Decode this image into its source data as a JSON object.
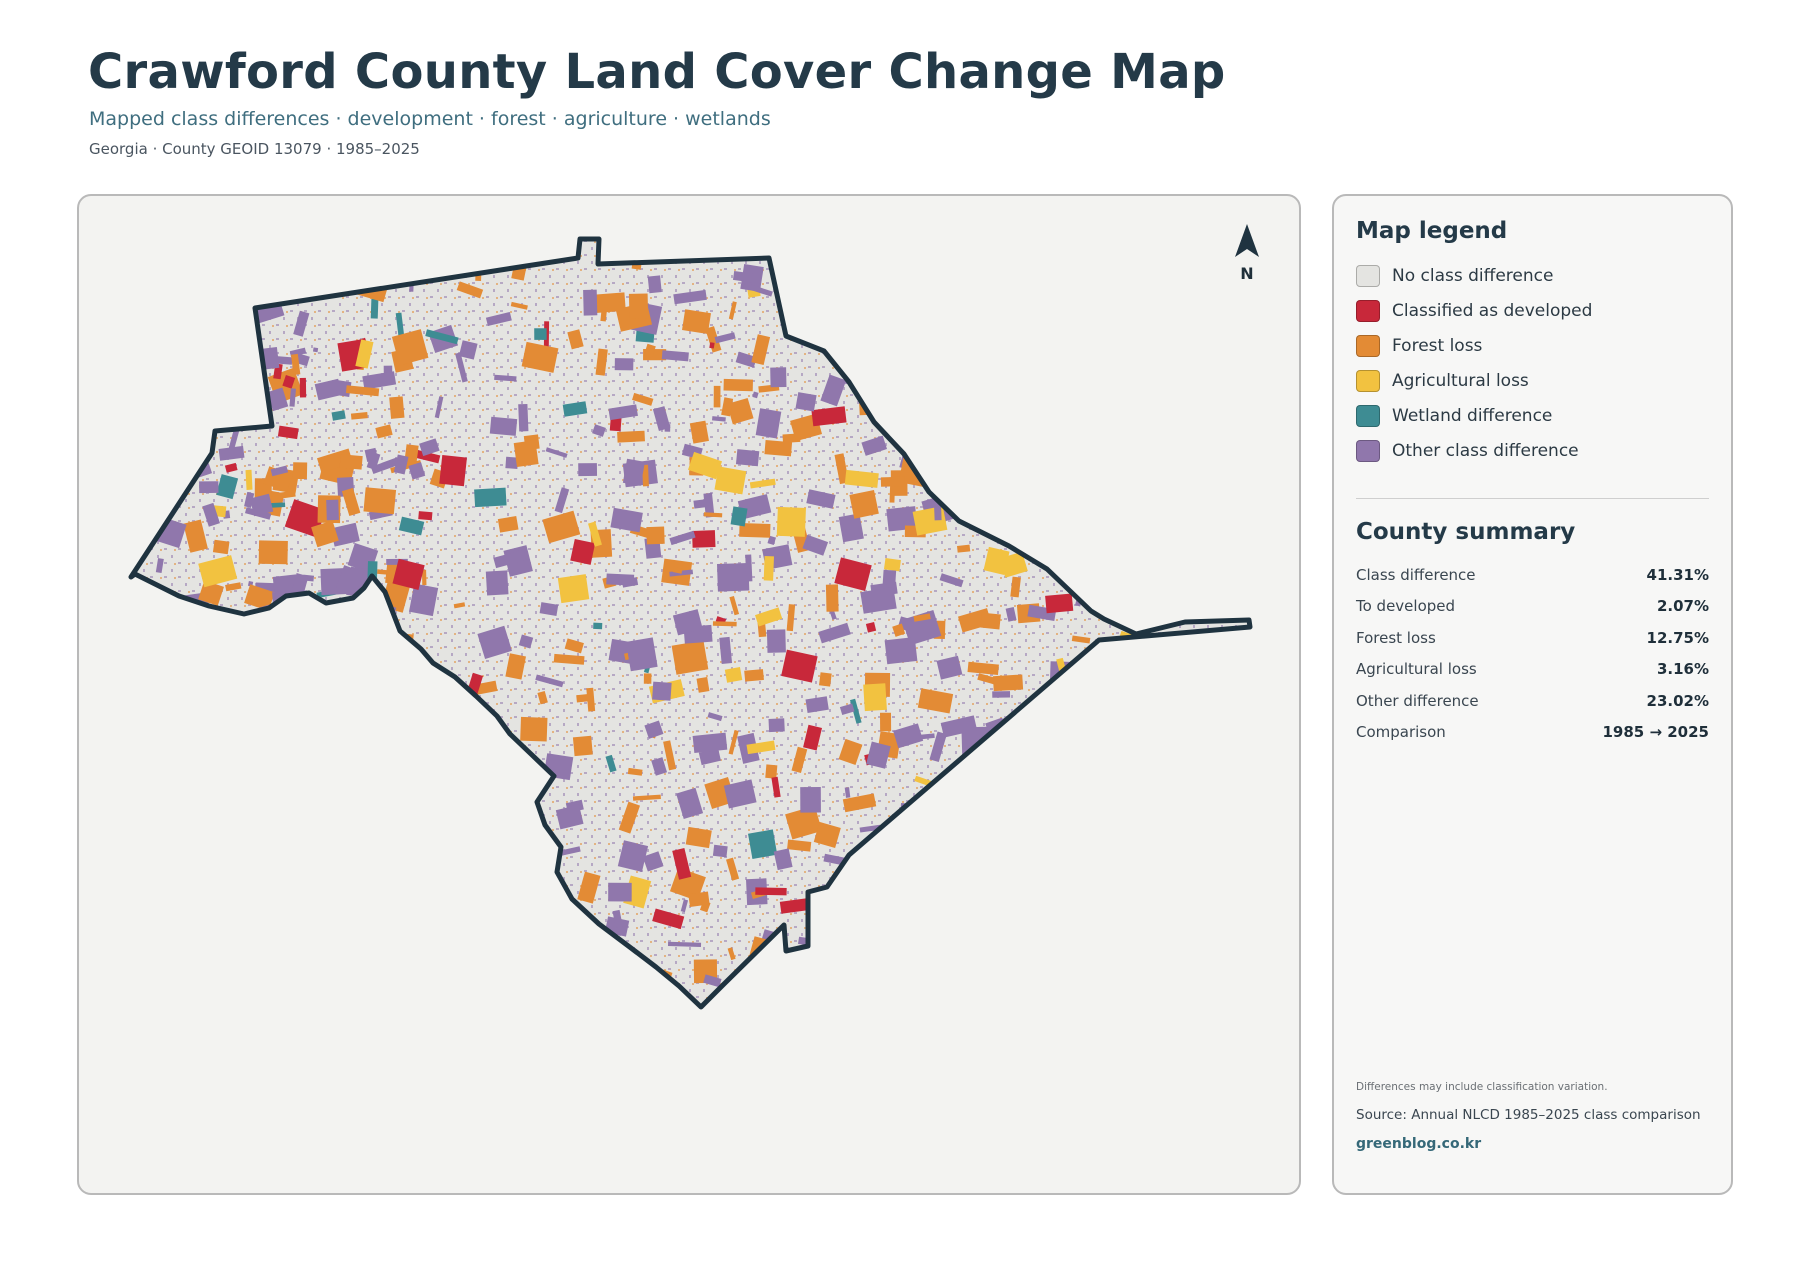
{
  "header": {
    "title": "Crawford County Land Cover Change Map",
    "subtitle": "Mapped class differences · development · forest · agriculture · wetlands",
    "meta": "Georgia · County GEOID 13079 · 1985–2025"
  },
  "map": {
    "north_label": "N",
    "north_icon": "north-arrow-icon",
    "boundary_color": "#1f3340",
    "county_fill": "#e4e4e1"
  },
  "legend": {
    "title": "Map legend",
    "items": [
      {
        "label": "No class difference",
        "color": "#e4e4e1"
      },
      {
        "label": "Classified as developed",
        "color": "#c8283a"
      },
      {
        "label": "Forest loss",
        "color": "#e38b35"
      },
      {
        "label": "Agricultural loss",
        "color": "#f2c240"
      },
      {
        "label": "Wetland difference",
        "color": "#3e8c93"
      },
      {
        "label": "Other class difference",
        "color": "#9077ac"
      }
    ]
  },
  "summary": {
    "title": "County summary",
    "rows": [
      {
        "label": "Class difference",
        "value": "41.31%"
      },
      {
        "label": "To developed",
        "value": "2.07%"
      },
      {
        "label": "Forest loss",
        "value": "12.75%"
      },
      {
        "label": "Agricultural loss",
        "value": "3.16%"
      },
      {
        "label": "Other difference",
        "value": "23.02%"
      },
      {
        "label": "Comparison",
        "value": "1985 → 2025"
      }
    ]
  },
  "footer": {
    "note": "Differences may include classification variation.",
    "source": "Source: Annual NLCD 1985–2025 class comparison",
    "site": "greenblog.co.kr"
  }
}
